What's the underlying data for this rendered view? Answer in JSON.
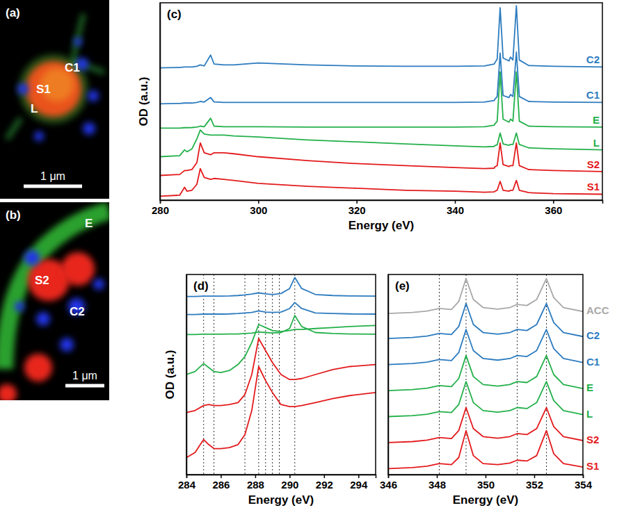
{
  "chart_data": [
    {
      "type": "image",
      "title": "(a)",
      "labels": [
        "C1",
        "S1",
        "L"
      ],
      "scale_bar": "1 μm"
    },
    {
      "type": "image",
      "title": "(b)",
      "labels": [
        "E",
        "S2",
        "C2"
      ],
      "scale_bar": "1 μm"
    },
    {
      "type": "line",
      "title": "(c)",
      "x_label": "Energy (eV)",
      "y_label": "OD (a.u.)",
      "x": [
        280,
        284,
        285,
        285.5,
        286.5,
        287.5,
        288.2,
        289,
        290.3,
        291,
        293,
        295,
        300,
        310,
        320,
        330,
        340,
        346,
        348,
        348.1,
        348.6,
        349.2,
        349.8,
        351,
        351.3,
        351.8,
        352.5,
        353.1,
        355,
        360,
        370
      ],
      "xlim": [
        280,
        370
      ],
      "xticks": [
        280,
        300,
        320,
        340,
        360
      ],
      "ylim": [
        0,
        10
      ],
      "tick_labels": "x",
      "series": [
        {
          "name": "S1",
          "color": "#e31a1c",
          "values": [
            0.2,
            0.25,
            0.65,
            0.45,
            0.5,
            0.8,
            1.6,
            1.15,
            1.05,
            1.1,
            1.05,
            1.0,
            0.85,
            0.7,
            0.6,
            0.5,
            0.45,
            0.4,
            0.42,
            0.45,
            0.5,
            0.95,
            0.5,
            0.45,
            0.5,
            0.5,
            1.0,
            0.5,
            0.38,
            0.33,
            0.3
          ]
        },
        {
          "name": "S2",
          "color": "#e31a1c",
          "values": [
            1.25,
            1.3,
            1.5,
            1.5,
            1.55,
            1.9,
            2.9,
            2.4,
            2.3,
            2.4,
            2.4,
            2.35,
            2.2,
            2.0,
            1.85,
            1.75,
            1.65,
            1.6,
            1.62,
            1.68,
            1.75,
            2.9,
            1.8,
            1.7,
            1.75,
            1.75,
            2.9,
            1.75,
            1.55,
            1.5,
            1.45
          ]
        },
        {
          "name": "L",
          "color": "#23b04a",
          "values": [
            2.2,
            2.25,
            2.55,
            2.45,
            2.6,
            3.1,
            3.55,
            3.35,
            3.3,
            3.3,
            3.3,
            3.25,
            3.2,
            3.05,
            2.95,
            2.85,
            2.75,
            2.7,
            2.72,
            2.76,
            2.8,
            3.4,
            2.85,
            2.78,
            2.82,
            2.82,
            3.4,
            2.82,
            2.65,
            2.6,
            2.55
          ]
        },
        {
          "name": "E",
          "color": "#23b04a",
          "values": [
            3.65,
            3.65,
            3.67,
            3.67,
            3.68,
            3.7,
            3.75,
            3.72,
            4.15,
            3.75,
            3.72,
            3.72,
            3.72,
            3.7,
            3.7,
            3.7,
            3.7,
            3.72,
            3.8,
            3.85,
            4.0,
            6.5,
            4.1,
            3.95,
            4.1,
            4.0,
            6.5,
            4.0,
            3.75,
            3.72,
            3.7
          ]
        },
        {
          "name": "C1",
          "color": "#2c7bbf",
          "values": [
            4.88,
            4.9,
            4.92,
            4.92,
            4.92,
            4.95,
            5.0,
            4.97,
            5.2,
            4.98,
            4.95,
            4.95,
            4.95,
            4.95,
            4.95,
            4.95,
            4.95,
            4.97,
            5.05,
            5.1,
            5.25,
            7.45,
            5.3,
            5.2,
            5.35,
            5.25,
            7.5,
            5.25,
            5.0,
            4.97,
            4.95
          ]
        },
        {
          "name": "C2",
          "color": "#2c7bbf",
          "values": [
            6.7,
            6.72,
            6.75,
            6.75,
            6.75,
            6.78,
            6.85,
            6.8,
            7.35,
            6.9,
            6.85,
            6.85,
            6.95,
            6.85,
            6.8,
            6.78,
            6.78,
            6.8,
            6.9,
            6.95,
            7.15,
            9.75,
            7.2,
            7.05,
            7.25,
            7.1,
            9.85,
            7.1,
            6.82,
            6.78,
            6.75
          ]
        }
      ]
    },
    {
      "type": "line",
      "title": "(d)",
      "x_label": "Energy (eV)",
      "y_label": "OD (a.u.)",
      "x": [
        284,
        284.5,
        285,
        285.3,
        285.6,
        286,
        286.5,
        287,
        287.4,
        287.8,
        288.2,
        288.6,
        289,
        289.5,
        290,
        290.3,
        290.7,
        291.5,
        292.5,
        293.5,
        295
      ],
      "xlim": [
        284,
        295
      ],
      "xticks": [
        284,
        286,
        288,
        290,
        292,
        294
      ],
      "ylim": [
        0,
        10
      ],
      "tick_labels": "x",
      "reference_lines": [
        285.0,
        285.6,
        287.4,
        288.2,
        288.6,
        289.0,
        289.4,
        290.3
      ],
      "series": [
        {
          "color": "#e31a1c",
          "values": [
            0.85,
            1.1,
            1.75,
            1.5,
            1.3,
            1.3,
            1.35,
            1.5,
            2.0,
            3.2,
            5.4,
            4.7,
            4.1,
            3.5,
            3.4,
            3.4,
            3.45,
            3.6,
            3.8,
            3.95,
            4.1
          ]
        },
        {
          "color": "#e31a1c",
          "values": [
            3.1,
            3.2,
            3.45,
            3.5,
            3.45,
            3.45,
            3.5,
            3.6,
            4.0,
            5.0,
            6.8,
            6.2,
            5.6,
            5.0,
            4.75,
            4.75,
            4.8,
            5.0,
            5.25,
            5.4,
            5.5
          ]
        },
        {
          "color": "#23b04a",
          "values": [
            5.0,
            5.15,
            5.55,
            5.35,
            5.15,
            5.1,
            5.2,
            5.5,
            5.9,
            6.6,
            7.5,
            7.35,
            7.2,
            7.15,
            7.2,
            7.25,
            7.25,
            7.3,
            7.35,
            7.4,
            7.45
          ]
        },
        {
          "color": "#23b04a",
          "values": [
            7.0,
            7.0,
            7.02,
            7.02,
            7.02,
            7.02,
            7.03,
            7.03,
            7.05,
            7.07,
            7.12,
            7.1,
            7.08,
            7.1,
            7.3,
            7.95,
            7.4,
            7.1,
            7.05,
            7.03,
            7.02
          ]
        },
        {
          "color": "#2c7bbf",
          "values": [
            8.0,
            8.0,
            8.02,
            8.02,
            8.02,
            8.02,
            8.03,
            8.05,
            8.08,
            8.1,
            8.18,
            8.12,
            8.1,
            8.12,
            8.3,
            8.6,
            8.3,
            8.08,
            8.05,
            8.03,
            8.02
          ]
        },
        {
          "color": "#2c7bbf",
          "values": [
            8.9,
            8.9,
            8.92,
            8.92,
            8.92,
            8.92,
            8.93,
            8.95,
            8.98,
            9.02,
            9.08,
            9.03,
            9.0,
            9.05,
            9.3,
            9.85,
            9.3,
            9.0,
            8.95,
            8.93,
            8.92
          ]
        }
      ]
    },
    {
      "type": "line",
      "title": "(e)",
      "x_label": "Energy (eV)",
      "x": [
        346,
        347,
        347.6,
        348.1,
        348.6,
        348.9,
        349.2,
        349.5,
        349.9,
        350.5,
        351,
        351.3,
        351.7,
        352.1,
        352.5,
        352.8,
        353.2,
        354
      ],
      "xlim": [
        346,
        354
      ],
      "xticks": [
        346,
        348,
        350,
        352,
        354
      ],
      "ylim": [
        0,
        10
      ],
      "tick_labels": "x",
      "reference_lines": [
        348.1,
        349.2,
        351.3,
        352.5
      ],
      "series": [
        {
          "name": "S1",
          "color": "#e31a1c",
          "values": [
            0.3,
            0.35,
            0.42,
            0.55,
            0.5,
            0.85,
            2.2,
            0.95,
            0.55,
            0.5,
            0.58,
            0.72,
            0.68,
            0.95,
            2.2,
            1.05,
            0.55,
            0.38
          ]
        },
        {
          "name": "S2",
          "color": "#e31a1c",
          "values": [
            1.6,
            1.65,
            1.72,
            1.85,
            1.8,
            2.2,
            3.35,
            2.3,
            1.9,
            1.82,
            1.9,
            2.05,
            2.0,
            2.3,
            3.35,
            2.4,
            1.9,
            1.7
          ]
        },
        {
          "name": "L",
          "color": "#23b04a",
          "values": [
            2.9,
            2.95,
            3.02,
            3.15,
            3.1,
            3.5,
            4.65,
            3.6,
            3.2,
            3.12,
            3.2,
            3.35,
            3.3,
            3.6,
            4.65,
            3.7,
            3.2,
            3.0
          ]
        },
        {
          "name": "E",
          "color": "#23b04a",
          "values": [
            4.2,
            4.25,
            4.32,
            4.45,
            4.4,
            4.8,
            5.95,
            4.9,
            4.5,
            4.42,
            4.5,
            4.65,
            4.6,
            4.9,
            5.95,
            5.0,
            4.5,
            4.3
          ]
        },
        {
          "name": "C1",
          "color": "#2c7bbf",
          "values": [
            5.5,
            5.55,
            5.62,
            5.75,
            5.7,
            6.1,
            7.25,
            6.2,
            5.8,
            5.72,
            5.8,
            5.95,
            5.9,
            6.2,
            7.25,
            6.3,
            5.8,
            5.6
          ]
        },
        {
          "name": "C2",
          "color": "#2c7bbf",
          "values": [
            6.8,
            6.85,
            6.92,
            7.05,
            7.0,
            7.4,
            8.55,
            7.5,
            7.1,
            7.02,
            7.1,
            7.25,
            7.2,
            7.5,
            8.55,
            7.6,
            7.1,
            6.9
          ]
        },
        {
          "name": "ACC",
          "color": "#a8a8a8",
          "values": [
            8.05,
            8.1,
            8.17,
            8.3,
            8.25,
            8.65,
            9.8,
            8.75,
            8.35,
            8.27,
            8.35,
            8.5,
            8.45,
            8.75,
            9.8,
            8.85,
            8.35,
            8.15
          ]
        }
      ]
    }
  ]
}
